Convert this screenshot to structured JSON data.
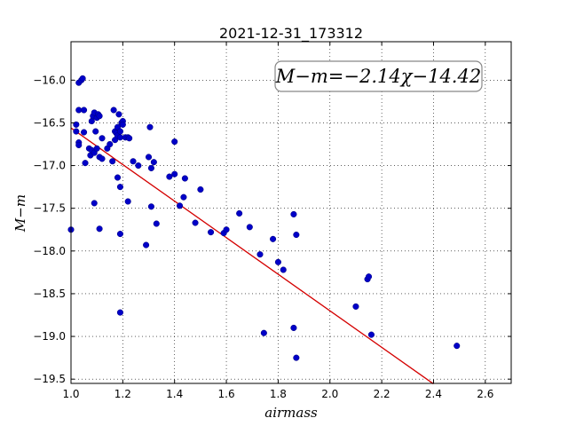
{
  "chart_data": {
    "type": "scatter",
    "title": "2021-12-31_173312",
    "xlabel": "airmass",
    "ylabel": "M−m",
    "xlim": [
      1.0,
      2.7
    ],
    "ylim": [
      -19.55,
      -15.55
    ],
    "xticks": [
      "1.0",
      "1.2",
      "1.4",
      "1.6",
      "1.8",
      "2.0",
      "2.2",
      "2.4",
      "2.6"
    ],
    "yticks": [
      "−16.0",
      "−16.5",
      "−17.0",
      "−17.5",
      "−18.0",
      "−18.5",
      "−19.0",
      "−19.5"
    ],
    "grid": true,
    "annotation": "M−m=−2.14χ−14.42",
    "fit": {
      "slope": -2.14,
      "intercept": -14.42,
      "x_range": [
        1.0,
        2.4
      ],
      "color": "#d40000"
    },
    "point_color": "#0000c8",
    "points": [
      [
        1.0,
        -17.75
      ],
      [
        1.02,
        -16.6
      ],
      [
        1.02,
        -16.52
      ],
      [
        1.03,
        -16.35
      ],
      [
        1.03,
        -16.03
      ],
      [
        1.04,
        -16.0
      ],
      [
        1.045,
        -15.98
      ],
      [
        1.05,
        -16.35
      ],
      [
        1.03,
        -16.73
      ],
      [
        1.03,
        -16.76
      ],
      [
        1.05,
        -16.61
      ],
      [
        1.055,
        -16.97
      ],
      [
        1.07,
        -16.8
      ],
      [
        1.075,
        -16.88
      ],
      [
        1.08,
        -16.82
      ],
      [
        1.08,
        -16.48
      ],
      [
        1.085,
        -16.42
      ],
      [
        1.09,
        -16.38
      ],
      [
        1.09,
        -16.85
      ],
      [
        1.095,
        -16.6
      ],
      [
        1.1,
        -16.8
      ],
      [
        1.1,
        -16.44
      ],
      [
        1.105,
        -16.4
      ],
      [
        1.11,
        -16.42
      ],
      [
        1.11,
        -16.9
      ],
      [
        1.12,
        -16.68
      ],
      [
        1.12,
        -16.92
      ],
      [
        1.14,
        -16.8
      ],
      [
        1.15,
        -16.75
      ],
      [
        1.16,
        -16.95
      ],
      [
        1.165,
        -16.35
      ],
      [
        1.17,
        -16.6
      ],
      [
        1.17,
        -16.7
      ],
      [
        1.175,
        -16.62
      ],
      [
        1.18,
        -16.65
      ],
      [
        1.18,
        -16.55
      ],
      [
        1.185,
        -16.4
      ],
      [
        1.19,
        -16.6
      ],
      [
        1.19,
        -16.67
      ],
      [
        1.195,
        -16.5
      ],
      [
        1.2,
        -16.48
      ],
      [
        1.2,
        -16.52
      ],
      [
        1.21,
        -16.67
      ],
      [
        1.22,
        -16.67
      ],
      [
        1.225,
        -16.68
      ],
      [
        1.24,
        -16.95
      ],
      [
        1.18,
        -17.14
      ],
      [
        1.19,
        -17.25
      ],
      [
        1.26,
        -17.0
      ],
      [
        1.22,
        -17.42
      ],
      [
        1.09,
        -17.44
      ],
      [
        1.11,
        -17.74
      ],
      [
        1.19,
        -17.8
      ],
      [
        1.3,
        -16.9
      ],
      [
        1.305,
        -16.55
      ],
      [
        1.31,
        -17.03
      ],
      [
        1.31,
        -17.48
      ],
      [
        1.32,
        -16.96
      ],
      [
        1.33,
        -17.68
      ],
      [
        1.29,
        -17.93
      ],
      [
        1.19,
        -18.72
      ],
      [
        1.38,
        -17.13
      ],
      [
        1.4,
        -16.72
      ],
      [
        1.4,
        -17.1
      ],
      [
        1.42,
        -17.47
      ],
      [
        1.435,
        -17.37
      ],
      [
        1.44,
        -17.15
      ],
      [
        1.48,
        -17.67
      ],
      [
        1.5,
        -17.28
      ],
      [
        1.54,
        -17.78
      ],
      [
        1.59,
        -17.79
      ],
      [
        1.6,
        -17.75
      ],
      [
        1.65,
        -17.56
      ],
      [
        1.69,
        -17.72
      ],
      [
        1.73,
        -18.04
      ],
      [
        1.745,
        -18.96
      ],
      [
        1.78,
        -17.86
      ],
      [
        1.8,
        -18.13
      ],
      [
        1.82,
        -18.22
      ],
      [
        1.86,
        -17.57
      ],
      [
        1.87,
        -17.81
      ],
      [
        1.86,
        -18.9
      ],
      [
        1.87,
        -19.25
      ],
      [
        2.1,
        -18.65
      ],
      [
        2.145,
        -18.33
      ],
      [
        2.15,
        -18.3
      ],
      [
        2.16,
        -18.98
      ],
      [
        2.49,
        -19.11
      ]
    ]
  }
}
